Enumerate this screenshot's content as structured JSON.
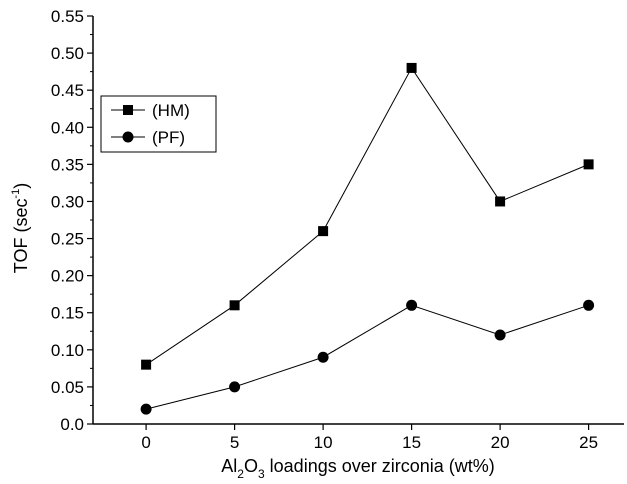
{
  "chart_data": {
    "type": "line",
    "x": [
      0,
      5,
      10,
      15,
      20,
      25
    ],
    "xlim": [
      -3,
      27
    ],
    "ylim": [
      0.0,
      0.55
    ],
    "x_tick_labels": [
      "0",
      "5",
      "10",
      "15",
      "20",
      "25"
    ],
    "y_tick_labels": [
      "0.0",
      "0.05",
      "0.10",
      "0.15",
      "0.20",
      "0.25",
      "0.30",
      "0.35",
      "0.40",
      "0.45",
      "0.50",
      "0.55"
    ],
    "ylabel": "TOF (sec",
    "ylabel_sup": "-1",
    "ylabel_end": ")",
    "xlabel_parts": [
      "Al",
      "2",
      "O",
      "3",
      " loadings over zirconia (wt%)"
    ],
    "grid": false,
    "legend_position": "upper-left",
    "series": [
      {
        "name": "(HM)",
        "marker": "square",
        "color": "#000000",
        "values": [
          0.08,
          0.16,
          0.26,
          0.48,
          0.3,
          0.35
        ]
      },
      {
        "name": "(PF)",
        "marker": "circle",
        "color": "#000000",
        "values": [
          0.02,
          0.05,
          0.09,
          0.16,
          0.12,
          0.16
        ]
      }
    ]
  }
}
